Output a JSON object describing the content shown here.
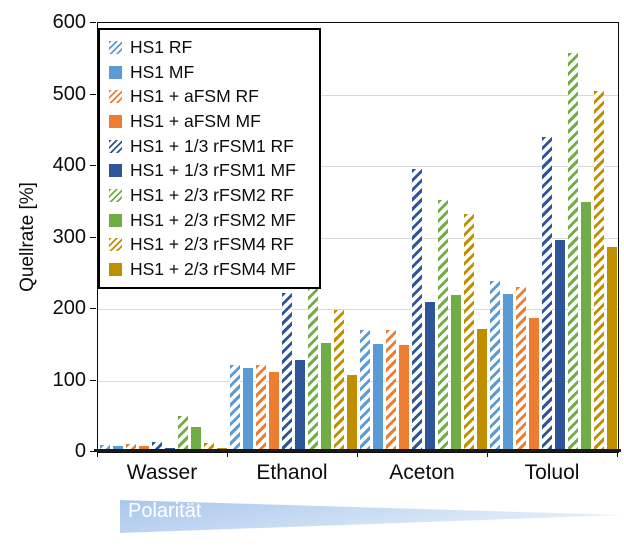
{
  "chart": {
    "y_axis_title": "Quellrate [%]",
    "y_tick_values": [
      0,
      100,
      200,
      300,
      400,
      500,
      600
    ],
    "polarity_label": "Polarität",
    "axis_color": "#0d0d0d",
    "gridline_color": "#d9d9d9",
    "wedge_color_start": "#a9c7ed",
    "wedge_color_end": "#e4eef9"
  },
  "chart_data": {
    "type": "bar",
    "title": "",
    "xlabel": "",
    "ylabel": "Quellrate [%]",
    "ylim": [
      0,
      600
    ],
    "grid": true,
    "legend_position": "top-left-inside",
    "categories": [
      "Wasser",
      "Ethanol",
      "Aceton",
      "Toluol"
    ],
    "series": [
      {
        "name": "HS1 RF",
        "color": "#5b9bd5",
        "hatched": true,
        "values": [
          10,
          121,
          170,
          239
        ]
      },
      {
        "name": "HS1 MF",
        "color": "#5b9bd5",
        "hatched": false,
        "values": [
          9,
          118,
          151,
          221
        ]
      },
      {
        "name": "HS1 + aFSM RF",
        "color": "#ed7d31",
        "hatched": true,
        "values": [
          11,
          121,
          170,
          231
        ]
      },
      {
        "name": "HS1 + aFSM MF",
        "color": "#ed7d31",
        "hatched": false,
        "values": [
          9,
          112,
          150,
          188
        ]
      },
      {
        "name": "HS1 + 1/3 rFSM1 RF",
        "color": "#2e5597",
        "hatched": true,
        "values": [
          14,
          223,
          396,
          441
        ]
      },
      {
        "name": "HS1 + 1/3 rFSM1 MF",
        "color": "#2e5597",
        "hatched": false,
        "values": [
          5,
          128,
          210,
          297
        ]
      },
      {
        "name": "HS1 + 2/3 rFSM2 RF",
        "color": "#70ad47",
        "hatched": true,
        "values": [
          51,
          231,
          353,
          558
        ]
      },
      {
        "name": "HS1 + 2/3 rFSM2 MF",
        "color": "#70ad47",
        "hatched": false,
        "values": [
          35,
          153,
          219,
          350
        ]
      },
      {
        "name": "HS1 + 2/3 rFSM4 RF",
        "color": "#bf8f00",
        "hatched": true,
        "values": [
          13,
          198,
          333,
          505
        ]
      },
      {
        "name": "HS1 + 2/3 rFSM4 MF",
        "color": "#bf8f00",
        "hatched": false,
        "values": [
          5,
          108,
          172,
          287
        ]
      }
    ]
  }
}
